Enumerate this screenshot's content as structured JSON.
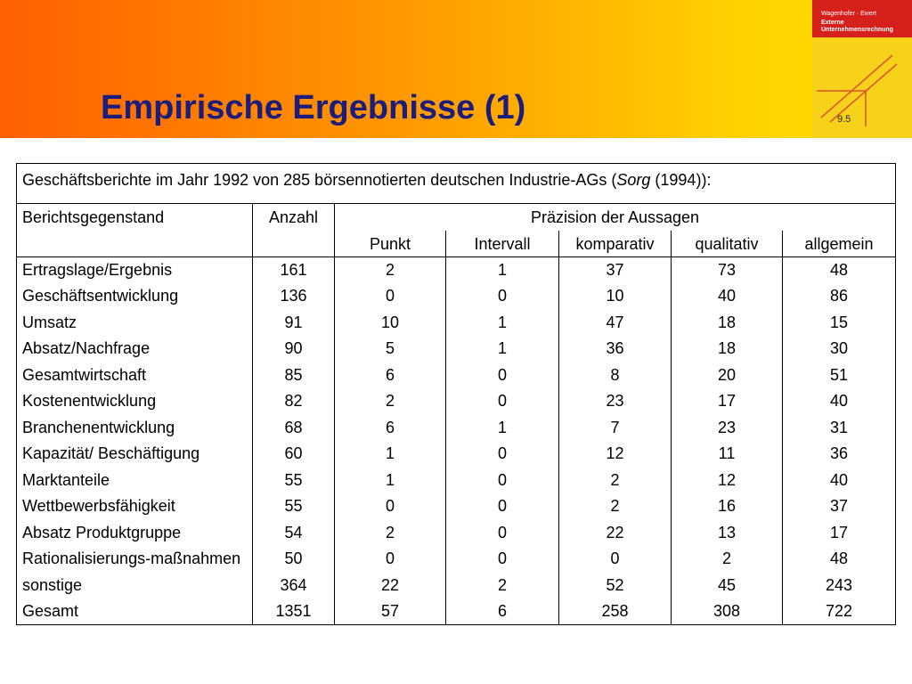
{
  "header": {
    "title": "Empirische Ergebnisse (1)",
    "book": {
      "authors": "Wagenhofer · Ewert",
      "title_1": "Externe",
      "title_2": "Unternehmensrechnung"
    },
    "section": "9.5"
  },
  "table": {
    "caption": {
      "before": "Geschäftsberichte im Jahr 1992 von 285 börsennotierten deutschen Industrie-AGs (",
      "italic": "Sorg",
      "after": " (1994)):"
    },
    "columns": {
      "subject": "Berichtsgegenstand",
      "count": "Anzahl",
      "group": "Präzision der Aussagen",
      "sub": [
        "Punkt",
        "Intervall",
        "komparativ",
        "qualitativ",
        "allgemein"
      ]
    },
    "rows": [
      [
        "Ertragslage/Ergebnis",
        161,
        2,
        1,
        37,
        73,
        48
      ],
      [
        "Geschäftsentwicklung",
        136,
        0,
        0,
        10,
        40,
        86
      ],
      [
        "Umsatz",
        91,
        10,
        1,
        47,
        18,
        15
      ],
      [
        "Absatz/Nachfrage",
        90,
        5,
        1,
        36,
        18,
        30
      ],
      [
        "Gesamtwirtschaft",
        85,
        6,
        0,
        8,
        20,
        51
      ],
      [
        "Kostenentwicklung",
        82,
        2,
        0,
        23,
        17,
        40
      ],
      [
        "Branchenentwicklung",
        68,
        6,
        1,
        7,
        23,
        31
      ],
      [
        "Kapazität/ Beschäftigung",
        60,
        1,
        0,
        12,
        11,
        36
      ],
      [
        "Marktanteile",
        55,
        1,
        0,
        2,
        12,
        40
      ],
      [
        "Wettbewerbsfähigkeit",
        55,
        0,
        0,
        2,
        16,
        37
      ],
      [
        "Absatz Produktgruppe",
        54,
        2,
        0,
        22,
        13,
        17
      ],
      [
        "Rationalisierungs-maßnahmen",
        50,
        0,
        0,
        0,
        2,
        48
      ],
      [
        "sonstige",
        364,
        22,
        2,
        52,
        45,
        243
      ],
      [
        "Gesamt",
        1351,
        57,
        6,
        258,
        308,
        722
      ]
    ]
  }
}
